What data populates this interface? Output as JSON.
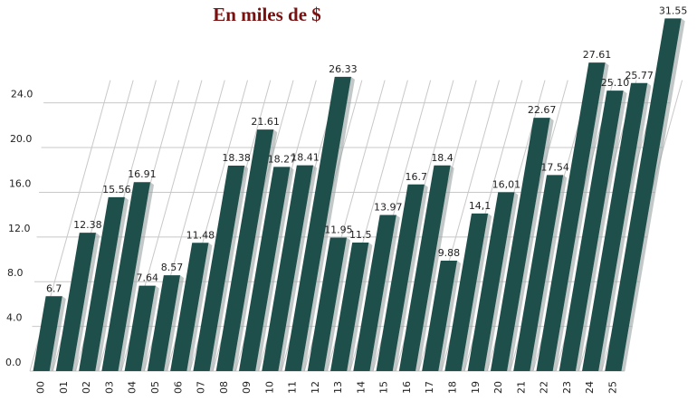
{
  "chart_data": {
    "type": "bar",
    "title": "En miles de $",
    "categories": [
      "00",
      "01",
      "02",
      "03",
      "04",
      "05",
      "06",
      "07",
      "08",
      "09",
      "10",
      "11",
      "12",
      "13",
      "14",
      "15",
      "16",
      "17",
      "18",
      "19",
      "20",
      "21",
      "22",
      "23",
      "24",
      "25"
    ],
    "values": [
      6.7,
      12.38,
      15.56,
      16.91,
      7.64,
      8.57,
      11.48,
      18.38,
      21.61,
      18.27,
      18.41,
      26.33,
      11.95,
      11.5,
      13.97,
      16.7,
      18.4,
      9.88,
      14.1,
      16.01,
      22.67,
      17.54,
      27.61,
      25.1,
      25.77,
      31.55
    ],
    "value_labels": [
      "6.7",
      "12.38",
      "15.56",
      "16.91",
      "7.64",
      "8.57",
      "11.48",
      "18.38",
      "21.61",
      "18.27",
      "18.41",
      "26.33",
      "11.95",
      "11.5",
      "13.97",
      "16.7",
      "18.4",
      "9.88",
      "14,1",
      "16,01",
      "22.67",
      "17.54",
      "27.61",
      "25.10",
      "25.77",
      "31.55"
    ],
    "color": "#1f4f4b",
    "ylim": [
      0,
      32.8
    ],
    "yticks": [
      {
        "value": 0,
        "label": "0.0"
      },
      {
        "value": 4,
        "label": "4.0"
      },
      {
        "value": 8,
        "label": "8.0"
      },
      {
        "value": 12,
        "label": "12.0"
      },
      {
        "value": 16,
        "label": "16.0"
      },
      {
        "value": 20,
        "label": "20.0"
      },
      {
        "value": 24,
        "label": "24.0"
      }
    ],
    "grid": true
  }
}
